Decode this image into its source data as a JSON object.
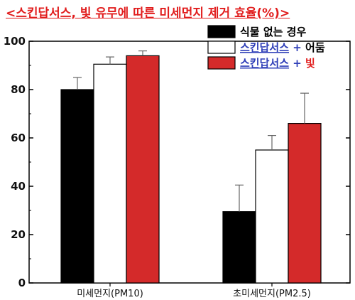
{
  "chart_data": {
    "type": "bar",
    "title": "<스킨답서스, 빛 유무에 따른 미세먼지 제거 효율(%)>",
    "categories": [
      "미세먼지(PM10)",
      "초미세먼지(PM2.5)"
    ],
    "ylim": [
      0,
      100
    ],
    "yticks": [
      0,
      20,
      40,
      60,
      80,
      100
    ],
    "legend_position": "top-right",
    "series": [
      {
        "name": "식물 없는 경우",
        "values": [
          80,
          29.5
        ],
        "errors": [
          5,
          11
        ],
        "color": "#000000",
        "legend_parts": [
          {
            "text": "식물 없는 경우",
            "color": "#000000",
            "underline": false
          }
        ]
      },
      {
        "name": "스킨답서스 + 어둠",
        "values": [
          90.5,
          55
        ],
        "errors": [
          3,
          6
        ],
        "color": "#ffffff",
        "legend_parts": [
          {
            "text": "스킨답서스",
            "color": "#2f3fb8",
            "underline": true
          },
          {
            "text": " + ",
            "color": "#2f3fb8",
            "underline": false
          },
          {
            "text": "어둠",
            "color": "#000000",
            "underline": false
          }
        ]
      },
      {
        "name": "스킨답서스 + 빛",
        "values": [
          94,
          66
        ],
        "errors": [
          2,
          12.5
        ],
        "color": "#d42a2a",
        "legend_parts": [
          {
            "text": "스킨답서스",
            "color": "#2f3fb8",
            "underline": true
          },
          {
            "text": " + ",
            "color": "#2f3fb8",
            "underline": false
          },
          {
            "text": "빛",
            "color": "#e11d1d",
            "underline": false
          }
        ]
      }
    ]
  }
}
